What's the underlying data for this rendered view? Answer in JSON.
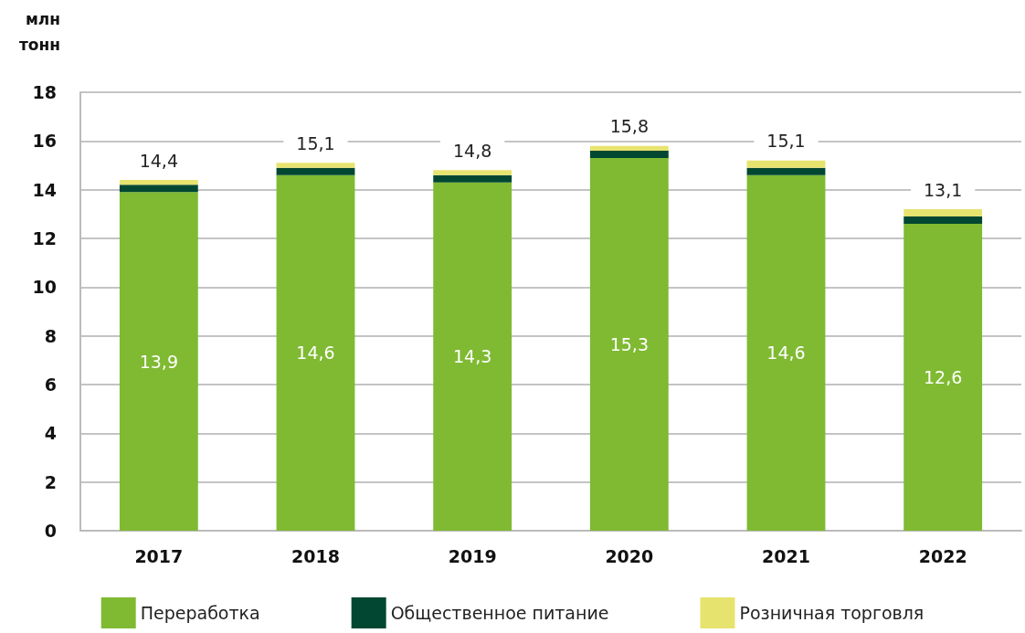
{
  "chart_data": {
    "type": "bar",
    "stacked": true,
    "ylabel": "млн\nтонн",
    "categories": [
      "2017",
      "2018",
      "2019",
      "2020",
      "2021",
      "2022"
    ],
    "series": [
      {
        "name": "Переработка",
        "color": "#7fba32",
        "values": [
          13.9,
          14.6,
          14.3,
          15.3,
          14.6,
          12.6
        ],
        "value_labels": [
          "13,9",
          "14,6",
          "14,3",
          "15,3",
          "14,6",
          "12,6"
        ]
      },
      {
        "name": "Общественное питание",
        "color": "#024731",
        "values": [
          0.3,
          0.3,
          0.3,
          0.3,
          0.3,
          0.3
        ]
      },
      {
        "name": "Розничная торговля",
        "color": "#e7e36f",
        "values": [
          0.2,
          0.2,
          0.2,
          0.2,
          0.3,
          0.3
        ]
      }
    ],
    "totals": [
      "14,4",
      "15,1",
      "14,8",
      "15,8",
      "15,1",
      "13,1"
    ],
    "ylim": [
      0,
      18
    ],
    "yticks": [
      0,
      2,
      4,
      6,
      8,
      10,
      12,
      14,
      16,
      18
    ],
    "grid": "y",
    "legend": "bottom"
  }
}
